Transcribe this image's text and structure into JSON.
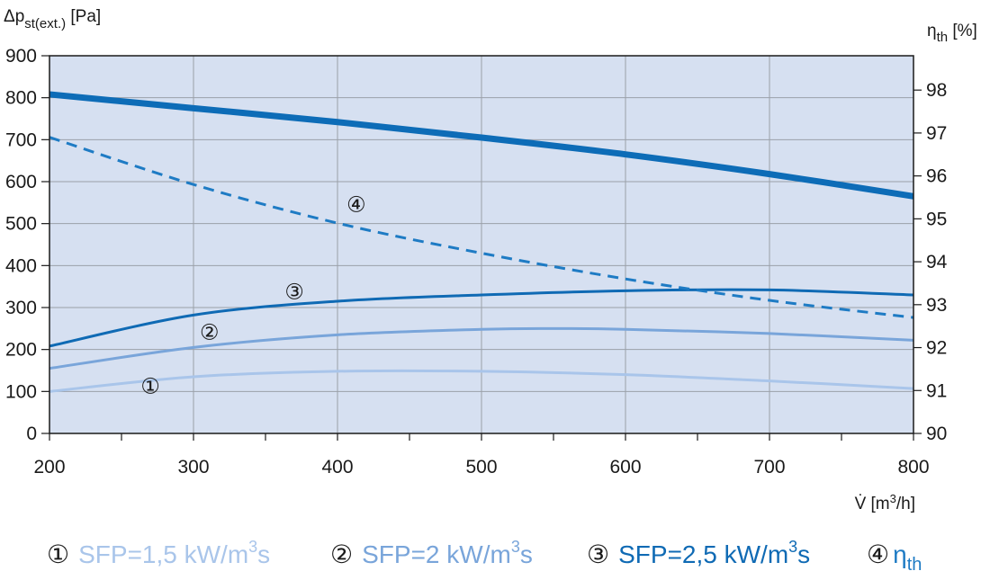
{
  "chart_data": {
    "type": "line",
    "title": "",
    "x": {
      "label_sym": "V̇",
      "label_unit_pre": " [m",
      "label_unit_sup": "3",
      "label_unit_post": "/h]",
      "range": [
        200,
        800
      ],
      "ticks": [
        200,
        300,
        400,
        500,
        600,
        700,
        800
      ]
    },
    "y_left": {
      "label_main": "Δp",
      "label_sub": "st(ext.)",
      "label_unit": " [Pa]",
      "range": [
        0,
        900
      ],
      "ticks": [
        0,
        100,
        200,
        300,
        400,
        500,
        600,
        700,
        800,
        900
      ]
    },
    "y_right": {
      "label_main": "η",
      "label_sub": "th",
      "label_unit": " [%]",
      "range": [
        90,
        98.8
      ],
      "ticks": [
        90,
        91,
        92,
        93,
        94,
        95,
        96,
        97,
        98
      ]
    },
    "grid": true,
    "background": "#d6e0f1",
    "series": [
      {
        "id": "1",
        "marker": "①",
        "axis": "left",
        "color": "#a9c5ea",
        "width": 3,
        "dash": "",
        "x": [
          200,
          300,
          400,
          500,
          600,
          700,
          800
        ],
        "y": [
          100,
          135,
          148,
          148,
          140,
          125,
          107
        ]
      },
      {
        "id": "2",
        "marker": "②",
        "axis": "left",
        "color": "#79a5da",
        "width": 3,
        "dash": "",
        "x": [
          200,
          300,
          400,
          500,
          550,
          600,
          700,
          800
        ],
        "y": [
          155,
          205,
          235,
          248,
          250,
          248,
          238,
          222
        ]
      },
      {
        "id": "3",
        "marker": "③",
        "axis": "left",
        "color": "#0f6ab4",
        "width": 3,
        "dash": "",
        "x": [
          200,
          300,
          400,
          500,
          600,
          700,
          800
        ],
        "y": [
          208,
          282,
          315,
          330,
          340,
          342,
          330
        ]
      },
      {
        "id": "4",
        "marker": "④",
        "axis": "right",
        "color": "#1e7bc4",
        "width": 3,
        "dash": "12,8",
        "x": [
          200,
          300,
          400,
          500,
          600,
          700,
          800
        ],
        "y": [
          96.9,
          95.8,
          94.9,
          94.2,
          93.6,
          93.1,
          92.7
        ]
      },
      {
        "id": "max",
        "marker": "",
        "axis": "left",
        "color": "#0d6cb7",
        "width": 7,
        "dash": "",
        "x": [
          200,
          300,
          400,
          500,
          600,
          700,
          800
        ],
        "y": [
          808,
          775,
          742,
          705,
          665,
          618,
          565
        ]
      }
    ],
    "annotations": [
      {
        "text": "①",
        "x": 270,
        "y": 115
      },
      {
        "text": "②",
        "x": 311,
        "y": 243
      },
      {
        "text": "③",
        "x": 370,
        "y": 340
      },
      {
        "text": "④",
        "x": 413,
        "y": 547
      }
    ],
    "legend": {
      "placement": "bottom",
      "items": [
        {
          "num": "①",
          "text": "SFP=1,5 kW/m",
          "sup": "3",
          "tail": "s",
          "sub": "",
          "color": "#a9c5ea"
        },
        {
          "num": "②",
          "text": "SFP=2 kW/m",
          "sup": "3",
          "tail": "s",
          "sub": "",
          "color": "#79a5da"
        },
        {
          "num": "③",
          "text": "SFP=2,5 kW/m",
          "sup": "3",
          "tail": "s",
          "sub": "",
          "color": "#0f6ab4"
        },
        {
          "num": "④",
          "text": "η",
          "sup": "",
          "tail": "",
          "sub": "th",
          "color": "#1e7bc4"
        }
      ]
    }
  }
}
